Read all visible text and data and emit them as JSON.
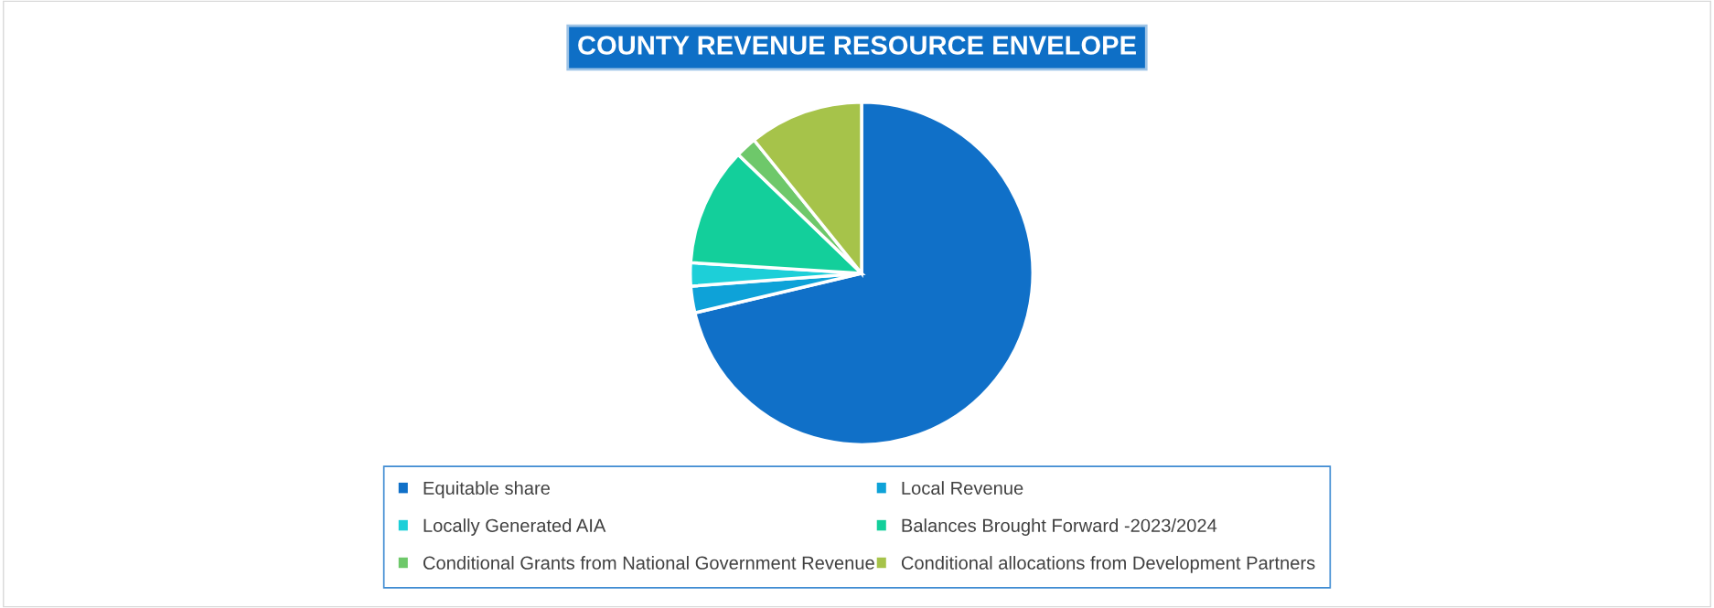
{
  "chart_data": {
    "type": "pie",
    "title": "COUNTY REVENUE RESOURCE ENVELOPE",
    "categories": [
      "Equitable share",
      "Local Revenue",
      "Locally Generated AIA",
      "Balances Brought Forward -2023/2024",
      "Conditional Grants from National Government Revenue",
      "Conditional allocations from Development Partners"
    ],
    "values": [
      71.3,
      2.5,
      2.2,
      11.2,
      2.0,
      10.8
    ],
    "colors": [
      "#1070c8",
      "#0ea2d8",
      "#1dcfd8",
      "#13cf9b",
      "#6ec86a",
      "#a6c34a"
    ],
    "legend": "bottom"
  }
}
